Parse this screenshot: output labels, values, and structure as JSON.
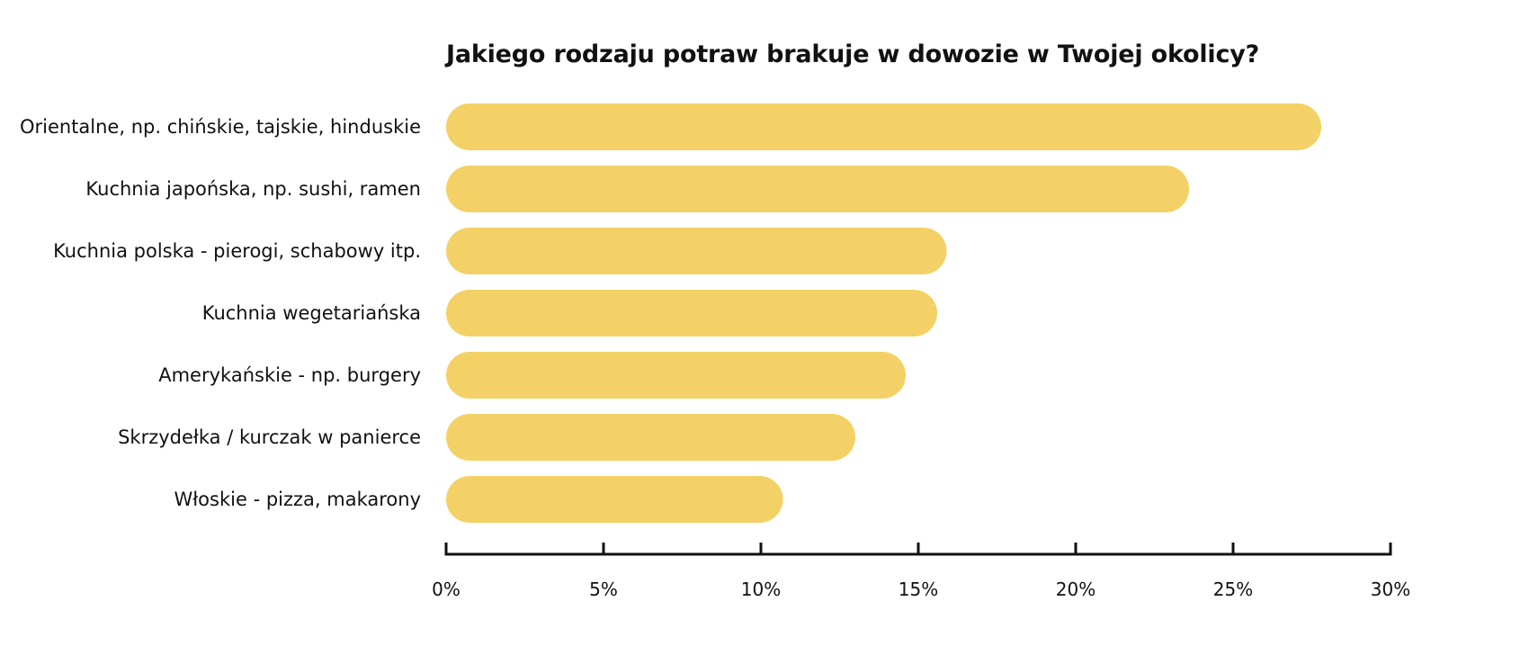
{
  "chart_data": {
    "type": "bar",
    "orientation": "horizontal",
    "title": "Jakiego rodzaju potraw brakuje w dowozie w Twojej okolicy?",
    "xlabel": "",
    "ylabel": "",
    "categories": [
      "Orientalne, np. chińskie, tajskie, hinduskie",
      "Kuchnia japońska, np. sushi, ramen",
      "Kuchnia polska - pierogi, schabowy itp.",
      "Kuchnia wegetariańska",
      "Amerykańskie - np. burgery",
      "Skrzydełka / kurczak w panierce",
      "Włoskie - pizza, makarony"
    ],
    "values": [
      27.8,
      23.6,
      15.9,
      15.6,
      14.6,
      13.0,
      10.7
    ],
    "xlim": [
      0,
      30
    ],
    "ticks": [
      0,
      5,
      10,
      15,
      20,
      25,
      30
    ],
    "tick_labels": [
      "0%",
      "5%",
      "10%",
      "15%",
      "20%",
      "25%",
      "30%"
    ],
    "grid": false,
    "legend": "none",
    "bar_color": "#F3D166",
    "axis_color": "#111111",
    "text_color": "#111111"
  }
}
